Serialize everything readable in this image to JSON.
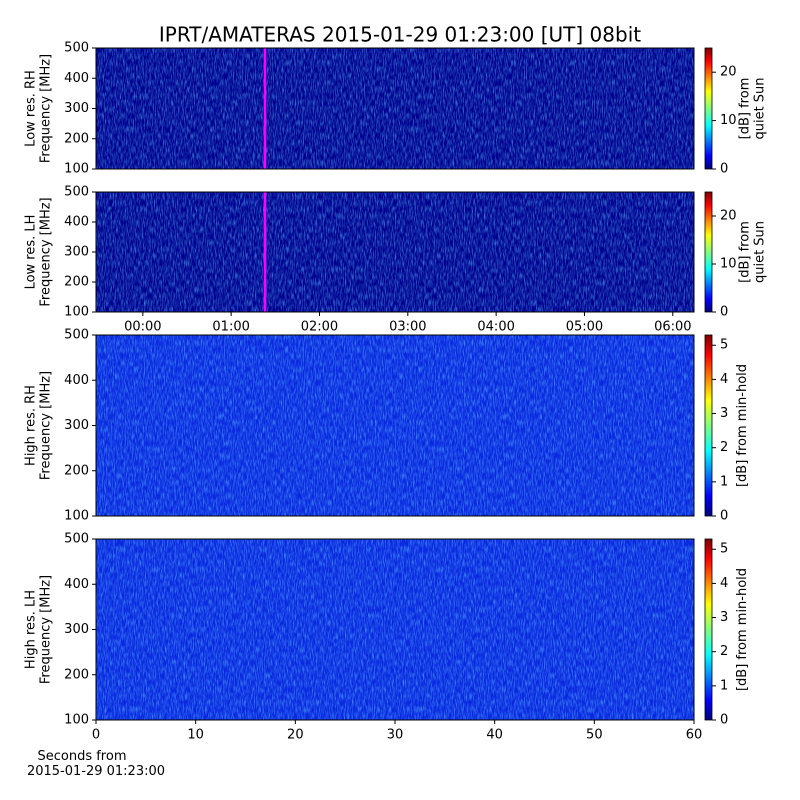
{
  "chart_data": [
    {
      "type": "spectrogram",
      "title": "IPRT/AMATERAS 2015-01-29 01:23:00 [UT]   08bit",
      "ylabel": [
        "Low res. RH",
        "Frequency [MHz]"
      ],
      "ylim": [
        100,
        500
      ],
      "yticks": [
        100,
        200,
        300,
        400,
        500
      ],
      "xlim": [
        -0.53,
        6.24
      ],
      "marker_x": 1.383,
      "marker_color": "#ff00ff",
      "colorbar_label": [
        "[dB] from",
        "quiet Sun"
      ],
      "clim": [
        0,
        25
      ],
      "cticks": [
        0,
        10,
        20
      ]
    },
    {
      "type": "spectrogram",
      "ylabel": [
        "Low res. LH",
        "Frequency [MHz]"
      ],
      "ylim": [
        100,
        500
      ],
      "yticks": [
        100,
        200,
        300,
        400,
        500
      ],
      "xlim": [
        -0.53,
        6.24
      ],
      "marker_x": 1.383,
      "marker_color": "#ff00ff",
      "xticks": [
        {
          "value": 0,
          "label": "00:00"
        },
        {
          "value": 1,
          "label": "01:00"
        },
        {
          "value": 2,
          "label": "02:00"
        },
        {
          "value": 3,
          "label": "03:00"
        },
        {
          "value": 4,
          "label": "04:00"
        },
        {
          "value": 5,
          "label": "05:00"
        },
        {
          "value": 6,
          "label": "06:00"
        }
      ],
      "colorbar_label": [
        "[dB] from",
        "quiet Sun"
      ],
      "clim": [
        0,
        25
      ],
      "cticks": [
        0,
        10,
        20
      ]
    },
    {
      "type": "spectrogram",
      "ylabel": [
        "High res. RH",
        "Frequency [MHz]"
      ],
      "ylim": [
        100,
        500
      ],
      "yticks": [
        100,
        200,
        300,
        400,
        500
      ],
      "xlim": [
        0,
        60
      ],
      "colorbar_label": [
        "[dB] from min-hold"
      ],
      "clim": [
        0,
        5.3
      ],
      "cticks": [
        0,
        1,
        2,
        3,
        4,
        5
      ]
    },
    {
      "type": "spectrogram",
      "ylabel": [
        "High res. LH",
        "Frequency [MHz]"
      ],
      "ylim": [
        100,
        500
      ],
      "yticks": [
        100,
        200,
        300,
        400,
        500
      ],
      "xlim": [
        0,
        60
      ],
      "xticks": [
        0,
        10,
        20,
        30,
        40,
        50,
        60
      ],
      "xlabel": [
        "Seconds from",
        "2015-01-29 01:23:00"
      ],
      "colorbar_label": [
        "[dB] from min-hold"
      ],
      "clim": [
        0,
        5.3
      ],
      "cticks": [
        0,
        1,
        2,
        3,
        4,
        5
      ]
    }
  ]
}
